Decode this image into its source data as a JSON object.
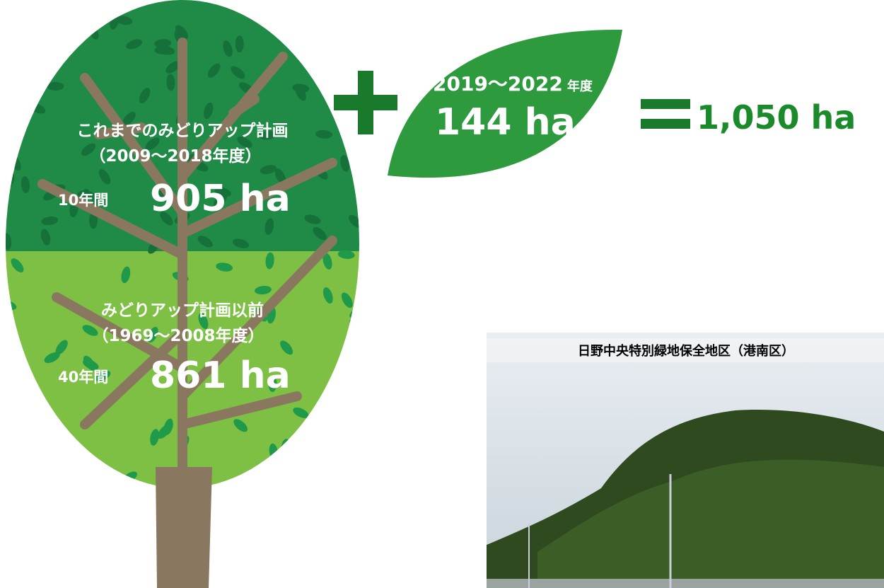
{
  "tree": {
    "upper": {
      "title": "これまでのみどりアップ計画",
      "period": "（2009～2018年度）",
      "duration": "10年間",
      "area": "905 ha"
    },
    "lower": {
      "title": "みどりアップ計画以前",
      "period": "（1969～2008年度）",
      "duration": "40年間",
      "area": "861 ha"
    }
  },
  "leaf": {
    "period": "2019～2022",
    "period_unit": "年度",
    "area": "144 ha"
  },
  "total": {
    "area": "1,050 ha"
  },
  "photo": {
    "caption": "日野中央特別緑地保全地区（港南区）"
  }
}
